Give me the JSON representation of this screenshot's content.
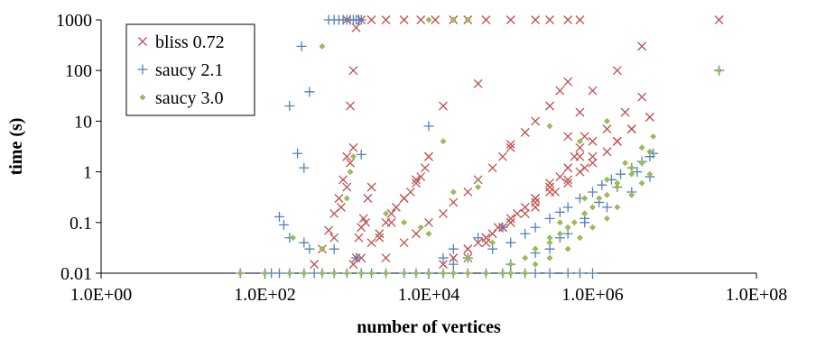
{
  "chart_data": {
    "type": "scatter",
    "x_scale": "log",
    "y_scale": "log",
    "xlabel": "number of vertices",
    "ylabel": "time (s)",
    "xlim": [
      1,
      100000000
    ],
    "ylim": [
      0.01,
      1000
    ],
    "x_tick_values": [
      1,
      100,
      10000,
      1000000,
      100000000
    ],
    "x_tick_labels": [
      "1.0E+00",
      "1.0E+02",
      "1.0E+04",
      "1.0E+06",
      "1.0E+08"
    ],
    "y_tick_values": [
      0.01,
      0.1,
      1,
      10,
      100,
      1000
    ],
    "y_tick_labels": [
      "0.01",
      "0.1",
      "1",
      "10",
      "100",
      "1000"
    ],
    "grid": false,
    "legend_position": "top-left",
    "series": [
      {
        "name": "bliss 0.72",
        "marker": "x",
        "color": "#C0504D",
        "x": [
          400,
          500,
          600,
          700,
          800,
          900,
          1000,
          1100,
          1200,
          1300,
          700,
          850,
          1000,
          1100,
          1200,
          1200,
          1300,
          1400,
          1500,
          1600,
          1700,
          1800,
          2000,
          1500,
          2500,
          3500,
          5000,
          7000,
          10000,
          15000,
          2000,
          2500,
          3000,
          3500,
          4000,
          5000,
          6000,
          7000,
          8000,
          9000,
          10000,
          3000,
          5000,
          7000,
          10000,
          15000,
          20000,
          30000,
          40000,
          60000,
          80000,
          100000,
          150000,
          200000,
          300000,
          400000,
          500000,
          20000,
          30000,
          50000,
          70000,
          100000,
          150000,
          200000,
          300000,
          400000,
          500000,
          600000,
          700000,
          800000,
          15000,
          20000,
          30000,
          50000,
          80000,
          100000,
          150000,
          200000,
          300000,
          500000,
          800000,
          1000000,
          2000000,
          3000000,
          5000000,
          30000,
          50000,
          80000,
          120000,
          200000,
          300000,
          500000,
          700000,
          1000000,
          1500000,
          2500000,
          4000000,
          500000,
          700000,
          1000000,
          2000000,
          4000000,
          40000,
          60000,
          100000,
          200000,
          350000,
          500000,
          700000,
          1000000,
          1500000,
          2000000,
          3000000,
          5000000,
          35000000,
          1000,
          1500,
          2000,
          3000,
          5000,
          8000,
          12000,
          20000,
          30000,
          50000,
          100000,
          200000,
          300000,
          500000,
          700000,
          40000,
          100000
        ],
        "y": [
          0.015,
          0.03,
          0.07,
          0.15,
          0.3,
          0.7,
          2,
          20,
          100,
          700,
          0.05,
          0.2,
          0.5,
          1.5,
          3,
          0.015,
          0.02,
          0.05,
          0.08,
          0.12,
          0.1,
          0.3,
          0.5,
          0.02,
          0.05,
          0.1,
          0.3,
          0.7,
          2,
          20,
          0.04,
          0.06,
          0.1,
          0.15,
          0.2,
          0.3,
          0.4,
          0.6,
          0.8,
          1.2,
          2,
          0.02,
          0.04,
          0.06,
          0.1,
          0.15,
          0.25,
          0.4,
          0.7,
          1.2,
          2,
          3.5,
          6,
          10,
          20,
          40,
          60,
          0.02,
          0.03,
          0.05,
          0.08,
          0.12,
          0.2,
          0.3,
          0.5,
          0.8,
          1.2,
          2,
          3,
          5,
          0.015,
          0.02,
          0.03,
          0.05,
          0.08,
          0.1,
          0.15,
          0.25,
          0.4,
          0.7,
          1.2,
          2,
          4,
          7,
          12,
          0.02,
          0.04,
          0.08,
          0.15,
          0.3,
          0.6,
          1.2,
          2,
          4,
          7,
          15,
          30,
          5,
          15,
          40,
          100,
          300,
          0.04,
          0.06,
          0.1,
          0.2,
          0.4,
          0.6,
          1,
          1.5,
          2.5,
          4,
          7,
          12,
          1000,
          1000,
          1000,
          1000,
          1000,
          1000,
          1000,
          1000,
          1000,
          1000,
          1000,
          1000,
          1000,
          1000,
          1000,
          1000,
          55,
          3
        ]
      },
      {
        "name": "saucy 2.1",
        "marker": "+",
        "color": "#4F81BD",
        "x": [
          50,
          100,
          120,
          150,
          200,
          300,
          400,
          500,
          700,
          1000,
          1500,
          2000,
          3000,
          5000,
          7000,
          10000,
          15000,
          20000,
          30000,
          50000,
          80000,
          100000,
          150000,
          200000,
          300000,
          500000,
          700000,
          1000000,
          150,
          170,
          200,
          250,
          300,
          350,
          700,
          1300,
          200,
          280,
          300,
          350,
          1500,
          10000,
          20000,
          30000,
          60000,
          100000,
          150000,
          200000,
          300000,
          400000,
          500000,
          700000,
          1000000,
          1300000,
          1700000,
          2200000,
          3000000,
          4000000,
          5500000,
          100000,
          200000,
          400000,
          800000,
          1500000,
          3000000,
          5000000,
          300000,
          500000,
          800000,
          1200000,
          2000000,
          3500000,
          5000000,
          10000,
          15000,
          20000,
          40000,
          80000,
          35000000,
          600,
          700,
          800,
          900,
          1000,
          1100,
          1200,
          1300,
          1400,
          1500
        ],
        "y": [
          0.01,
          0.01,
          0.01,
          0.01,
          0.01,
          0.01,
          0.01,
          0.01,
          0.01,
          0.01,
          0.01,
          0.01,
          0.01,
          0.01,
          0.01,
          0.01,
          0.01,
          0.01,
          0.01,
          0.01,
          0.01,
          0.01,
          0.01,
          0.01,
          0.01,
          0.01,
          0.01,
          0.01,
          0.13,
          0.09,
          0.05,
          2.3,
          1.2,
          38,
          0.03,
          0.02,
          20,
          300,
          0.04,
          0.03,
          2.2,
          0.01,
          0.015,
          0.02,
          0.03,
          0.04,
          0.06,
          0.08,
          0.12,
          0.16,
          0.2,
          0.3,
          0.4,
          0.55,
          0.7,
          0.9,
          1.2,
          1.6,
          2.3,
          0.015,
          0.025,
          0.05,
          0.1,
          0.2,
          0.4,
          0.8,
          0.03,
          0.06,
          0.12,
          0.25,
          0.5,
          1,
          2,
          8,
          0.02,
          0.03,
          0.05,
          0.08,
          100,
          1000,
          1000,
          1000,
          1000,
          1000,
          1000,
          1000,
          1000,
          1000,
          1000
        ]
      },
      {
        "name": "saucy 3.0",
        "marker": "diamond",
        "color": "#9BBB59",
        "x": [
          50,
          100,
          200,
          300,
          500,
          700,
          1000,
          1500,
          2000,
          3000,
          5000,
          7000,
          10000,
          15000,
          20000,
          30000,
          50000,
          80000,
          100000,
          150000,
          200000,
          300000,
          500000,
          700000,
          1000000,
          1500000,
          2000000,
          3000000,
          4000000,
          5000000,
          200000,
          300000,
          400000,
          500000,
          600000,
          800000,
          1000000,
          1500000,
          2000000,
          3000000,
          4000000,
          5000000,
          100000,
          150000,
          200000,
          300000,
          500000,
          800000,
          1200000,
          2000000,
          3000000,
          5000000,
          400000,
          800000,
          1500000,
          2500000,
          4000000,
          5500000,
          220,
          500,
          1000,
          1100,
          1200,
          3000,
          5000,
          8000,
          10000,
          20000,
          35000000,
          500,
          10000,
          20000,
          30000,
          15000,
          40000,
          300000,
          700000,
          1500000,
          30000,
          60000
        ],
        "y": [
          0.01,
          0.01,
          0.01,
          0.01,
          0.01,
          0.01,
          0.01,
          0.01,
          0.01,
          0.01,
          0.01,
          0.01,
          0.01,
          0.01,
          0.01,
          0.01,
          0.01,
          0.01,
          0.01,
          0.01,
          0.015,
          0.02,
          0.03,
          0.05,
          0.08,
          0.12,
          0.2,
          0.35,
          0.6,
          0.9,
          0.03,
          0.04,
          0.06,
          0.08,
          0.1,
          0.15,
          0.2,
          0.35,
          0.5,
          0.9,
          1.5,
          2.5,
          0.015,
          0.02,
          0.03,
          0.05,
          0.08,
          0.15,
          0.3,
          0.6,
          1.2,
          2.5,
          0.1,
          0.3,
          0.7,
          1.5,
          3,
          5,
          0.05,
          0.03,
          0.3,
          1,
          2,
          0.15,
          0.1,
          0.08,
          0.06,
          0.4,
          100,
          300,
          1000,
          1000,
          1000,
          4,
          0.5,
          8,
          4,
          10,
          0.02,
          0.04
        ]
      }
    ]
  }
}
